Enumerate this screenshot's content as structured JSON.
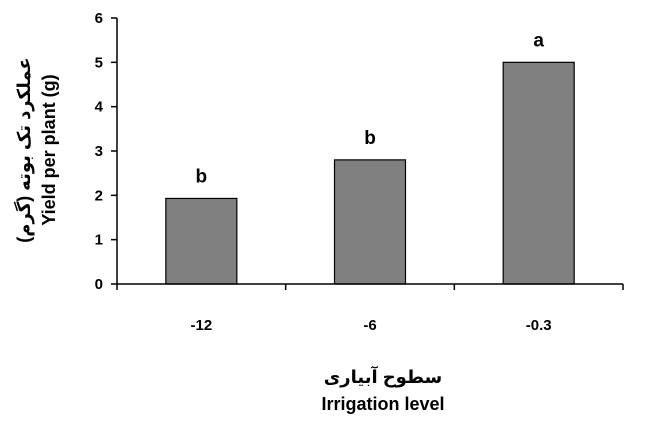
{
  "chart_data": {
    "type": "bar",
    "categories": [
      "-12",
      "-6",
      "-0.3"
    ],
    "values": [
      1.93,
      2.8,
      5.0
    ],
    "data_labels": [
      "b",
      "b",
      "a"
    ],
    "ylim": [
      0,
      6
    ],
    "yticks": [
      "0",
      "1",
      "2",
      "3",
      "4",
      "5",
      "6"
    ],
    "ylabel_fa": "عملکرد تک بوته (گرم)",
    "ylabel_en": "Yield per plant (g)",
    "xlabel_fa": "سطوح آبیاری",
    "xlabel_en": "Irrigation level",
    "grid": false,
    "legend": "none",
    "bar_color": "#808080",
    "bar_edge_color": "#000000"
  }
}
